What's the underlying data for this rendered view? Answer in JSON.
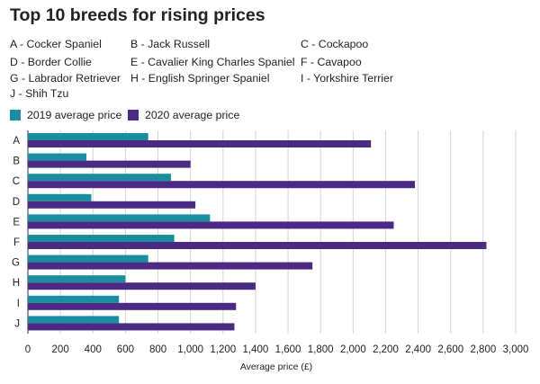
{
  "chart_data": {
    "type": "bar",
    "orientation": "horizontal",
    "title": "Top 10 breeds for rising prices",
    "breed_key": [
      "A - Cocker Spaniel",
      "B - Jack Russell",
      "C - Cockapoo",
      "D - Border Collie",
      "E - Cavalier King Charles Spaniel",
      "F - Cavapoo",
      "G - Labrador Retriever",
      "H - English Springer Spaniel",
      "I - Yorkshire Terrier",
      "J - Shih Tzu"
    ],
    "categories": [
      "A",
      "B",
      "C",
      "D",
      "E",
      "F",
      "G",
      "H",
      "I",
      "J"
    ],
    "series": [
      {
        "name": "2019 average price",
        "color": "#1a8ea0",
        "values": [
          740,
          360,
          880,
          390,
          1120,
          900,
          740,
          600,
          560,
          560
        ]
      },
      {
        "name": "2020 average price",
        "color": "#4a2a82",
        "values": [
          2110,
          1000,
          2380,
          1030,
          2250,
          2820,
          1750,
          1400,
          1280,
          1270
        ]
      }
    ],
    "xlabel": "Average price (£)",
    "xlim": [
      0,
      3000
    ],
    "xticks": [
      0,
      200,
      400,
      600,
      800,
      1000,
      1200,
      1400,
      1600,
      1800,
      2000,
      2200,
      2400,
      2600,
      2800,
      3000
    ],
    "xtick_labels": [
      "0",
      "200",
      "400",
      "600",
      "800",
      "1,000",
      "1,200",
      "1,400",
      "1,600",
      "1,800",
      "2,000",
      "2,200",
      "2,400",
      "2,600",
      "2,800",
      "3,000"
    ],
    "grid": true,
    "legend": "top-left"
  }
}
